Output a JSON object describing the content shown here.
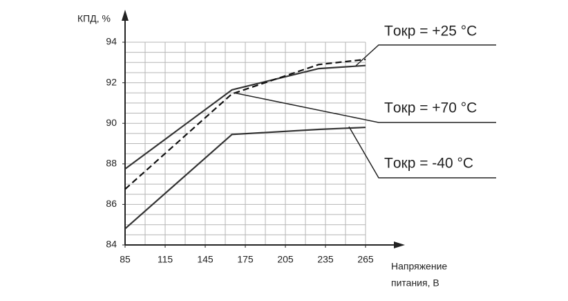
{
  "chart_data": {
    "type": "line",
    "ylabel": "КПД, %",
    "xlabel": [
      "Напряжение",
      "питания, В"
    ],
    "x": [
      85,
      165,
      230,
      265
    ],
    "series": [
      {
        "name": "Tокр = +25 °C",
        "color": "#333333",
        "dash": false,
        "values": [
          87.75,
          91.65,
          92.7,
          92.85
        ]
      },
      {
        "name": "Tокр = +70 °C",
        "color": "#111111",
        "dash": true,
        "values": [
          86.75,
          91.45,
          92.9,
          93.15
        ]
      },
      {
        "name": "Tокр = -40 °C",
        "color": "#333333",
        "dash": false,
        "values": [
          84.8,
          89.45,
          89.7,
          89.8
        ]
      }
    ],
    "xlim": [
      85,
      265
    ],
    "xticks": [
      85,
      115,
      145,
      175,
      205,
      235,
      265
    ],
    "ylim": [
      84,
      94
    ],
    "yticks": [
      84,
      86,
      88,
      90,
      92,
      94
    ],
    "grid": true,
    "xgrid_step": 15,
    "ygrid_step": 0.5
  }
}
